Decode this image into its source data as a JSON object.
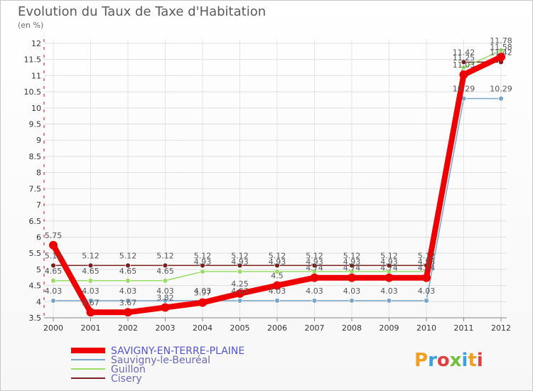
{
  "chart_data": {
    "type": "line",
    "title": "Evolution du Taux de Taxe d'Habitation",
    "subtitle": "(en %)",
    "xlabel": "",
    "ylabel": "",
    "categories": [
      "2000",
      "2001",
      "2002",
      "2003",
      "2004",
      "2005",
      "2006",
      "2007",
      "2008",
      "2009",
      "2010",
      "2011",
      "2012"
    ],
    "ylim": [
      3.5,
      12
    ],
    "yticks": [
      3.5,
      4,
      4.5,
      5,
      5.5,
      6,
      6.5,
      7,
      7.5,
      8,
      8.5,
      9,
      9.5,
      10,
      10.5,
      11,
      11.5,
      12
    ],
    "ytick_labels": [
      "3.5",
      "4",
      "4.5",
      "5",
      "5.5",
      "6",
      "6.5",
      "7",
      "7.5",
      "8",
      "8.5",
      "9",
      "9.5",
      "10",
      "10.5",
      "11",
      "11.5",
      "12"
    ],
    "legend_position": "bottom-left",
    "series": [
      {
        "name": "Cisery",
        "color": "#7a1f1f",
        "values": [
          5.12,
          5.12,
          5.12,
          5.12,
          5.12,
          5.12,
          5.12,
          5.12,
          5.12,
          5.12,
          5.12,
          11.42,
          11.42
        ],
        "labels": [
          "5.12",
          "5.12",
          "5.12",
          "5.12",
          "5.12",
          "5.12",
          "5.12",
          "5.12",
          "5.12",
          "5.12",
          "5.12",
          "11.42",
          "11.42"
        ]
      },
      {
        "name": "Guillon",
        "color": "#99dd66",
        "values": [
          4.65,
          4.65,
          4.65,
          4.65,
          4.93,
          4.93,
          4.93,
          4.93,
          4.93,
          4.93,
          4.93,
          11.25,
          11.78
        ],
        "labels": [
          "4.65",
          "4.65",
          "4.65",
          "4.65",
          "4.93",
          "4.93",
          "4.93",
          "4.93",
          "4.93",
          "4.93",
          "4.93",
          "11.25",
          "11.78"
        ]
      },
      {
        "name": "Sauvigny-le-Beuréal",
        "color": "#7aa6cc",
        "values": [
          4.03,
          4.03,
          4.03,
          4.03,
          4.03,
          4.03,
          4.03,
          4.03,
          4.03,
          4.03,
          4.03,
          10.29,
          10.29
        ],
        "labels": [
          "4.03",
          "4.03",
          "4.03",
          "4.03",
          "4.03",
          "4.03",
          "4.03",
          "4.03",
          "4.03",
          "4.03",
          "4.03",
          "10.29",
          "10.29"
        ]
      },
      {
        "name": "SAVIGNY-EN-TERRE-PLAINE",
        "color": "#ee0000",
        "values": [
          5.75,
          3.67,
          3.67,
          3.82,
          3.97,
          4.25,
          4.5,
          4.74,
          4.74,
          4.74,
          4.74,
          11.03,
          11.58
        ],
        "labels": [
          "5.75",
          "3.67",
          "3.67",
          "3.82",
          "3.97",
          "4.25",
          "4.5",
          "4.74",
          "4.74",
          "4.74",
          "4.74",
          "11.03",
          "11.58"
        ]
      }
    ]
  },
  "legend": {
    "items": [
      {
        "label": "SAVIGNY-EN-TERRE-PLAINE",
        "color": "#ee0000"
      },
      {
        "label": "Sauvigny-le-Beuréal",
        "color": "#7aa6cc"
      },
      {
        "label": "Guillon",
        "color": "#99dd66"
      },
      {
        "label": "Cisery",
        "color": "#7a1f1f"
      }
    ]
  },
  "logo": {
    "text": "Proxiti"
  }
}
